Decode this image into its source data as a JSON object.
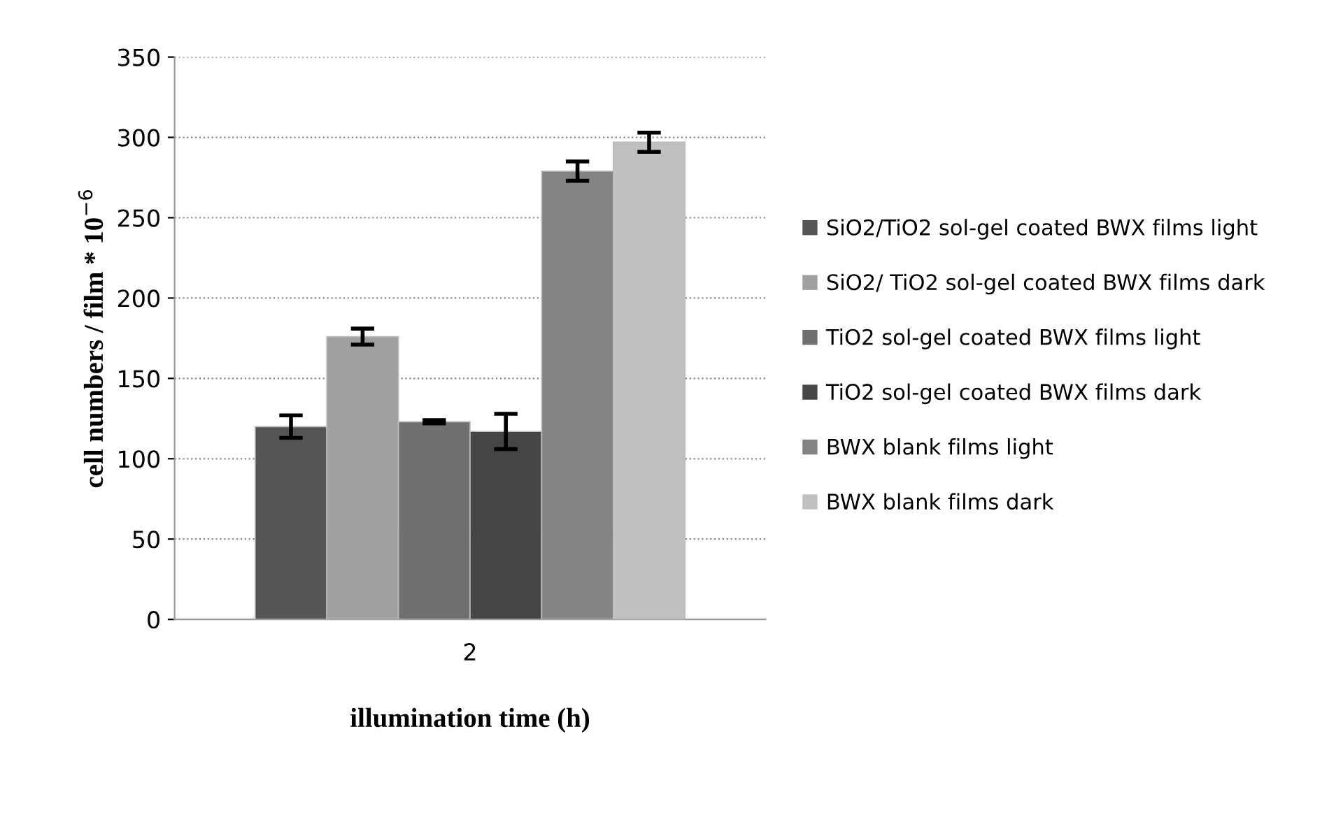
{
  "chart_data": {
    "type": "bar",
    "xlabel": "illumination time (h)",
    "ylabel": "cell numbers / film * 10$^{−6}$",
    "categories": [
      "2"
    ],
    "series": [
      {
        "name": "SiO2/TiO2 sol-gel coated BWX films light",
        "color": "#555555",
        "values": [
          120
        ],
        "errors": [
          7
        ]
      },
      {
        "name": "SiO2/ TiO2 sol-gel coated BWX films dark",
        "color": "#a0a0a0",
        "values": [
          176
        ],
        "errors": [
          5
        ]
      },
      {
        "name": "TiO2 sol-gel coated BWX films light",
        "color": "#707070",
        "values": [
          123
        ],
        "errors": [
          1
        ]
      },
      {
        "name": "TiO2 sol-gel coated BWX films dark",
        "color": "#454545",
        "values": [
          117
        ],
        "errors": [
          11
        ]
      },
      {
        "name": "BWX blank films light",
        "color": "#838383",
        "values": [
          279
        ],
        "errors": [
          6
        ]
      },
      {
        "name": "BWX blank films dark",
        "color": "#c0c0c0",
        "values": [
          297
        ],
        "errors": [
          6
        ]
      }
    ],
    "ylim": [
      0,
      350
    ],
    "yticks": [
      0,
      50,
      100,
      150,
      200,
      250,
      300,
      350
    ],
    "grid": "y",
    "legend": "right"
  }
}
